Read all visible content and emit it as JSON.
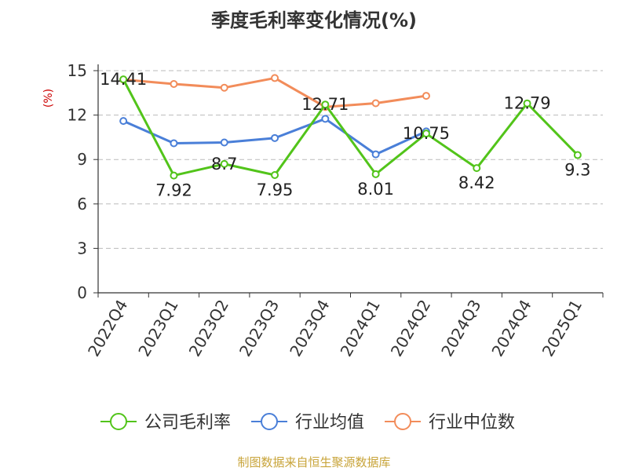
{
  "chart_data": {
    "type": "line",
    "title": "季度毛利率变化情况(%)",
    "ylabel": "(%)",
    "categories": [
      "2022Q4",
      "2023Q1",
      "2023Q2",
      "2023Q3",
      "2023Q4",
      "2024Q1",
      "2024Q2",
      "2024Q3",
      "2024Q4",
      "2025Q1"
    ],
    "ylim": [
      0,
      15
    ],
    "yticks": [
      "0",
      "3",
      "6",
      "9",
      "12",
      "15"
    ],
    "grid": true,
    "legend_position": "bottom",
    "series": [
      {
        "name": "公司毛利率",
        "color": "#52c41a",
        "values": [
          14.41,
          7.92,
          8.7,
          7.95,
          12.71,
          8.01,
          10.75,
          8.42,
          12.79,
          9.3
        ],
        "labels": [
          "14.41",
          "7.92",
          "8.7",
          "7.95",
          "12.71",
          "8.01",
          "10.75",
          "8.42",
          "12.79",
          "9.3"
        ]
      },
      {
        "name": "行业均值",
        "color": "#4a7fd8",
        "values": [
          11.6,
          10.1,
          10.15,
          10.45,
          11.75,
          9.35,
          10.9,
          null,
          null,
          null
        ]
      },
      {
        "name": "行业中位数",
        "color": "#f28c5a",
        "values": [
          14.4,
          14.1,
          13.85,
          14.5,
          12.55,
          12.8,
          13.3,
          null,
          null,
          null
        ]
      }
    ]
  },
  "source": "制图数据来自恒生聚源数据库",
  "colors": {
    "title": "#333333",
    "axis_label": "#cc0000",
    "source": "#c8a43a",
    "grid": "#bbbbbb",
    "axis": "#333333"
  }
}
